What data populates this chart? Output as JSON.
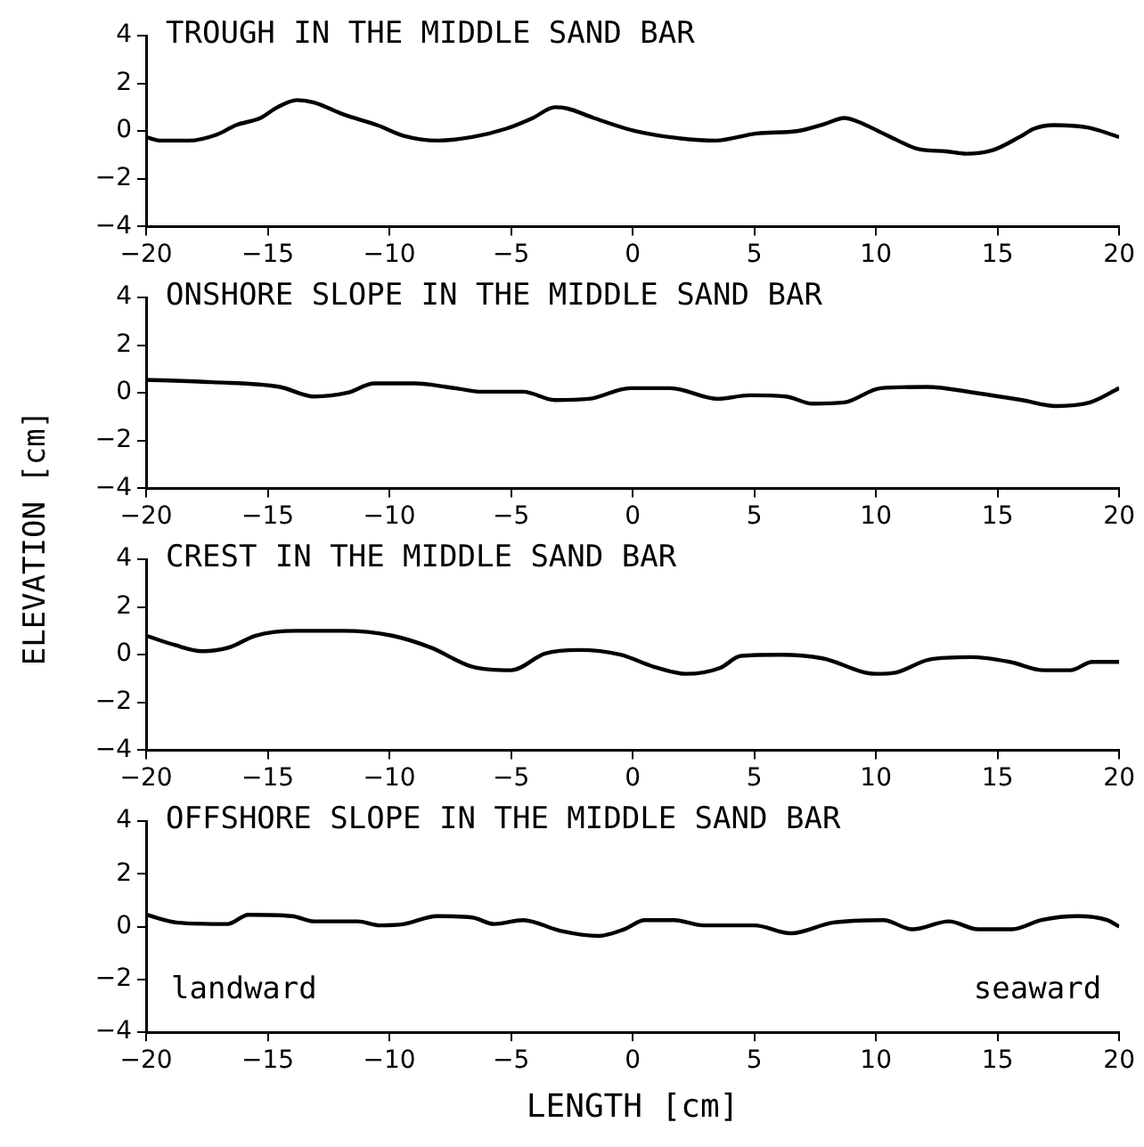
{
  "chart_data": [
    {
      "type": "line",
      "title": "TROUGH IN THE MIDDLE SAND BAR",
      "color": "#000000",
      "xlim": [
        -20,
        20
      ],
      "xticks": [
        -20,
        -15,
        -10,
        -5,
        0,
        5,
        10,
        15,
        20
      ],
      "ylim": [
        -4,
        4
      ],
      "yticks": [
        -4,
        -2,
        0,
        2,
        4
      ],
      "grid": false,
      "legend": false,
      "x": [
        -20,
        -19.4,
        -18.25,
        -17.1,
        -16.3,
        -15.3,
        -14.6,
        -13.8,
        -13.1,
        -11.9,
        -10.5,
        -9.4,
        -8,
        -6.6,
        -5.2,
        -4.1,
        -3.2,
        -2.7,
        -1.6,
        0.1,
        1.5,
        3.4,
        5.1,
        6.75,
        7.9,
        8.7,
        9.25,
        10.4,
        11.75,
        12.9,
        13.7,
        14.8,
        15.9,
        16.5,
        17.3,
        18.7,
        20
      ],
      "values": [
        -0.25,
        -0.4,
        -0.4,
        -0.15,
        0.25,
        0.55,
        1,
        1.3,
        1.2,
        0.7,
        0.25,
        -0.2,
        -0.4,
        -0.25,
        0.1,
        0.55,
        1,
        0.95,
        0.55,
        0,
        -0.25,
        -0.4,
        -0.1,
        0,
        0.3,
        0.55,
        0.4,
        -0.15,
        -0.75,
        -0.85,
        -0.95,
        -0.8,
        -0.25,
        0.1,
        0.25,
        0.15,
        -0.25
      ]
    },
    {
      "type": "line",
      "title": "ONSHORE SLOPE IN THE MIDDLE SAND BAR",
      "ylabel": "ELEVATION [cm]",
      "color": "#000000",
      "xlim": [
        -20,
        20
      ],
      "xticks": [
        -20,
        -15,
        -10,
        -5,
        0,
        5,
        10,
        15,
        20
      ],
      "ylim": [
        -4,
        4
      ],
      "yticks": [
        -4,
        -2,
        0,
        2,
        4
      ],
      "grid": false,
      "legend": false,
      "x": [
        -20,
        -17.3,
        -14.5,
        -13.1,
        -11.75,
        -10.6,
        -9,
        -7.3,
        -6.2,
        -4.5,
        -3.2,
        -1.8,
        -0.1,
        1.55,
        3.5,
        4.8,
        6.3,
        7.4,
        8.7,
        10.2,
        12.1,
        14.1,
        16,
        17.4,
        18.8,
        20
      ],
      "values": [
        0.55,
        0.45,
        0.25,
        -0.15,
        0,
        0.4,
        0.4,
        0.2,
        0.05,
        0.05,
        -0.3,
        -0.25,
        0.2,
        0.2,
        -0.25,
        -0.1,
        -0.15,
        -0.45,
        -0.4,
        0.2,
        0.25,
        0,
        -0.3,
        -0.55,
        -0.4,
        0.2
      ]
    },
    {
      "type": "line",
      "title": "CREST IN THE MIDDLE SAND BAR",
      "color": "#000000",
      "xlim": [
        -20,
        20
      ],
      "xticks": [
        -20,
        -15,
        -10,
        -5,
        0,
        5,
        10,
        15,
        20
      ],
      "ylim": [
        -4,
        4
      ],
      "yticks": [
        -4,
        -2,
        0,
        2,
        4
      ],
      "grid": false,
      "legend": false,
      "x": [
        -20,
        -18.8,
        -17.7,
        -16.6,
        -15.5,
        -13.8,
        -11.9,
        -9.9,
        -8.3,
        -6.6,
        -5,
        -3.6,
        -2.2,
        -0.5,
        0.85,
        2.2,
        3.6,
        4.45,
        6.1,
        7.8,
        10,
        10.8,
        12.2,
        13.9,
        15.5,
        16.9,
        18,
        18.9,
        20
      ],
      "values": [
        0.8,
        0.4,
        0.15,
        0.3,
        0.8,
        1,
        1,
        0.8,
        0.3,
        -0.5,
        -0.65,
        0.05,
        0.2,
        0,
        -0.5,
        -0.8,
        -0.55,
        -0.05,
        0,
        -0.15,
        -0.8,
        -0.75,
        -0.2,
        -0.1,
        -0.3,
        -0.65,
        -0.65,
        -0.3,
        -0.3
      ]
    },
    {
      "type": "line",
      "title": "OFFSHORE SLOPE IN THE MIDDLE SAND BAR",
      "xlabel": "LENGTH [cm]",
      "annotations": [
        "landward",
        "seaward"
      ],
      "color": "#000000",
      "xlim": [
        -20,
        20
      ],
      "xticks": [
        -20,
        -15,
        -10,
        -5,
        0,
        5,
        10,
        15,
        20
      ],
      "ylim": [
        -4,
        4
      ],
      "yticks": [
        -4,
        -2,
        0,
        2,
        4
      ],
      "grid": false,
      "legend": false,
      "x": [
        -20,
        -18.7,
        -16.65,
        -15.8,
        -14,
        -13.1,
        -11.3,
        -10.4,
        -9.4,
        -8.05,
        -6.6,
        -5.7,
        -4.5,
        -3,
        -1.4,
        -0.35,
        0.5,
        1.7,
        2.9,
        5,
        6.5,
        8.2,
        10.3,
        11.5,
        13,
        14.2,
        15.6,
        16.8,
        18.3,
        19.5,
        20
      ],
      "values": [
        0.45,
        0.15,
        0.1,
        0.45,
        0.4,
        0.2,
        0.2,
        0.05,
        0.1,
        0.4,
        0.35,
        0.1,
        0.25,
        -0.15,
        -0.35,
        -0.1,
        0.25,
        0.25,
        0.05,
        0.05,
        -0.25,
        0.15,
        0.25,
        -0.1,
        0.2,
        -0.1,
        -0.1,
        0.25,
        0.4,
        0.25,
        0
      ]
    }
  ]
}
